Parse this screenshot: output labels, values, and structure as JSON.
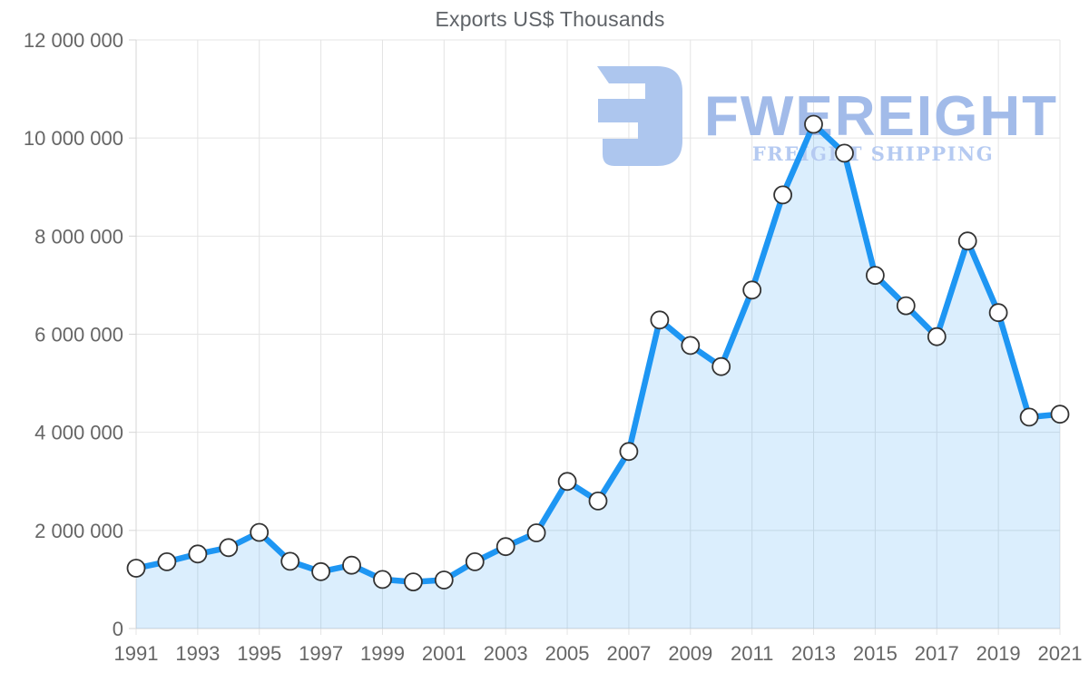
{
  "title": "Exports US$ Thousands",
  "watermark": {
    "brand": "FWEREIGHT",
    "tagline": "FREIGHT SHIPPING",
    "icon_color": "#adc6ee"
  },
  "colors": {
    "line": "#1e96f3",
    "area_fill": "rgba(30, 150, 243, 0.16)",
    "marker_fill": "#ffffff",
    "marker_stroke": "#333333",
    "gridline": "#e4e4e4",
    "axis_line": "#d6d6d6",
    "tick_text": "#666666",
    "title_text": "#5f6368"
  },
  "chart_data": {
    "type": "area",
    "title": "Exports US$ Thousands",
    "xlabel": "",
    "ylabel": "",
    "ylim": [
      0,
      12000000
    ],
    "grid": true,
    "legend": false,
    "marker": "circle",
    "x": [
      1991,
      1992,
      1993,
      1994,
      1995,
      1996,
      1997,
      1998,
      1999,
      2000,
      2001,
      2002,
      2003,
      2004,
      2005,
      2006,
      2007,
      2008,
      2009,
      2010,
      2011,
      2012,
      2013,
      2014,
      2015,
      2016,
      2017,
      2018,
      2019,
      2020,
      2021
    ],
    "values": [
      1230000,
      1360000,
      1520000,
      1650000,
      1960000,
      1370000,
      1160000,
      1290000,
      1000000,
      950000,
      990000,
      1360000,
      1670000,
      1950000,
      3000000,
      2600000,
      3610000,
      6290000,
      5770000,
      5340000,
      6900000,
      8840000,
      10280000,
      9690000,
      7200000,
      6580000,
      5950000,
      7900000,
      6440000,
      4310000,
      4370000
    ],
    "x_tick_labels": [
      "1991",
      "1993",
      "1995",
      "1997",
      "1999",
      "2001",
      "2003",
      "2005",
      "2007",
      "2009",
      "2011",
      "2013",
      "2015",
      "2017",
      "2019",
      "2021"
    ],
    "x_tick_years": [
      1991,
      1993,
      1995,
      1997,
      1999,
      2001,
      2003,
      2005,
      2007,
      2009,
      2011,
      2013,
      2015,
      2017,
      2019,
      2021
    ],
    "y_tick_labels": [
      "0",
      "2 000 000",
      "4 000 000",
      "6 000 000",
      "8 000 000",
      "10 000 000",
      "12 000 000"
    ],
    "y_tick_values": [
      0,
      2000000,
      4000000,
      6000000,
      8000000,
      10000000,
      12000000
    ]
  }
}
